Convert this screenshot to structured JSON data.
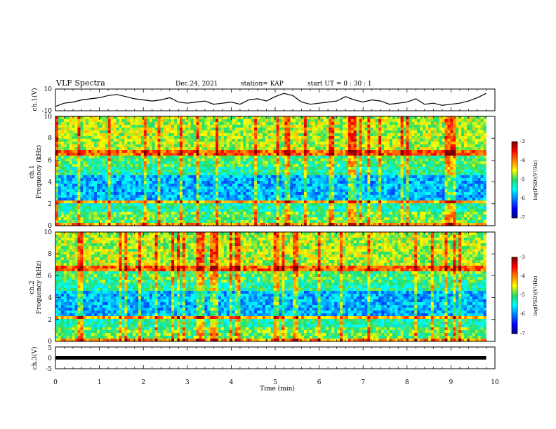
{
  "header": {
    "title": "VLF Spectra",
    "date": "Dec.24, 2021",
    "station": "station= KAP",
    "start": "start  UT =   0 : 30 : 1"
  },
  "chart_data": [
    {
      "type": "line",
      "panel": "ch1-waveform",
      "ylabel": "ch.1(V)",
      "ylim": [
        -10,
        10
      ],
      "y_ticks": [
        "10",
        "-10"
      ],
      "xlim": [
        0,
        10
      ],
      "data_extent_min": 9.8,
      "series_color": "#000000",
      "x": [
        0,
        0.2,
        0.4,
        0.6,
        0.8,
        1.0,
        1.2,
        1.4,
        1.6,
        1.8,
        2.0,
        2.2,
        2.4,
        2.6,
        2.8,
        3.0,
        3.2,
        3.4,
        3.6,
        3.8,
        4.0,
        4.2,
        4.4,
        4.6,
        4.8,
        5.0,
        5.2,
        5.4,
        5.6,
        5.8,
        6.0,
        6.2,
        6.4,
        6.6,
        6.8,
        7.0,
        7.2,
        7.4,
        7.6,
        7.8,
        8.0,
        8.2,
        8.4,
        8.6,
        8.8,
        9.0,
        9.2,
        9.4,
        9.6,
        9.8
      ],
      "values": [
        -6,
        -3,
        -2,
        0,
        1,
        2,
        4,
        5,
        3,
        1,
        0,
        -1,
        0,
        2,
        -2,
        -3,
        -2,
        -1,
        -4,
        -3,
        -2,
        -4,
        0,
        1,
        -1,
        3,
        6,
        4,
        -2,
        -4,
        -3,
        -2,
        -1,
        3,
        0,
        -2,
        0,
        -1,
        -4,
        -3,
        -2,
        1,
        -4,
        -3,
        -5,
        -4,
        -3,
        -1,
        2,
        6
      ]
    },
    {
      "type": "heatmap",
      "panel": "ch1-spectrogram",
      "ylabel": "ch.1\nFrequency (kHz)",
      "ylim": [
        0,
        10
      ],
      "y_ticks": [
        "0",
        "2",
        "4",
        "6",
        "8",
        "10"
      ],
      "xlim": [
        0,
        10
      ],
      "colorbar": {
        "label": "log(PSD)(V²/Hz)",
        "range": [
          -7,
          -3
        ],
        "ticks": [
          "-3",
          "-4",
          "-5",
          "-6",
          "-7"
        ]
      }
    },
    {
      "type": "heatmap",
      "panel": "ch2-spectrogram",
      "ylabel": "ch.2\nFrequency (kHz)",
      "ylim": [
        0,
        10
      ],
      "y_ticks": [
        "0",
        "2",
        "4",
        "6",
        "8",
        "10"
      ],
      "xlim": [
        0,
        10
      ],
      "colorbar": {
        "label": "log(PSD)(V²/Hz)",
        "range": [
          -7,
          -3
        ],
        "ticks": [
          "-3",
          "-4",
          "-5",
          "-6",
          "-7"
        ]
      }
    },
    {
      "type": "line",
      "panel": "ch3-waveform",
      "ylabel": "ch.3(V)",
      "ylim": [
        -5,
        5
      ],
      "y_ticks": [
        "5",
        "0",
        "-5"
      ],
      "xlim": [
        0,
        10
      ],
      "data_extent_min": 9.8,
      "constant_value": 0,
      "series_color": "#000000"
    }
  ],
  "x_axis": {
    "label": "Time  (min)",
    "ticks": [
      "0",
      "1",
      "2",
      "3",
      "4",
      "5",
      "6",
      "7",
      "8",
      "9",
      "10"
    ]
  },
  "colors": {
    "low": "#00007f",
    "high": "#7f0000",
    "line": "#000000"
  }
}
